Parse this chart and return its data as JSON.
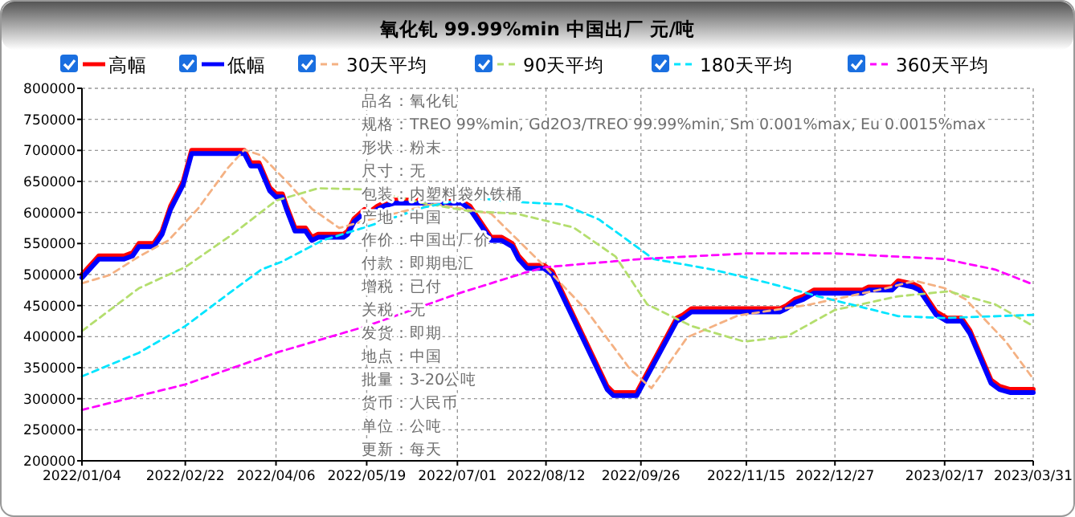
{
  "chart_data": {
    "type": "line",
    "title": "氧化钆 99.99%min 中国出厂 元/吨",
    "legend": "top",
    "grid": true,
    "marker": "none",
    "xlim": [
      "2022-01-04",
      "2023-03-31"
    ],
    "xticks": [
      {
        "value": "2022-01-04",
        "label": "2022/01/04"
      },
      {
        "value": "2022-02-22",
        "label": "2022/02/22"
      },
      {
        "value": "2022-04-06",
        "label": "2022/04/06"
      },
      {
        "value": "2022-05-19",
        "label": "2022/05/19"
      },
      {
        "value": "2022-07-01",
        "label": "2022/07/01"
      },
      {
        "value": "2022-08-12",
        "label": "2022/08/12"
      },
      {
        "value": "2022-09-26",
        "label": "2022/09/26"
      },
      {
        "value": "2022-11-15",
        "label": "2022/11/15"
      },
      {
        "value": "2022-12-27",
        "label": "2022/12/27"
      },
      {
        "value": "2023-02-17",
        "label": "2023/02/17"
      },
      {
        "value": "2023-03-31",
        "label": "2023/03/31"
      }
    ],
    "ylim": [
      200000,
      800000
    ],
    "yticks": [
      200000,
      250000,
      300000,
      350000,
      400000,
      450000,
      500000,
      550000,
      600000,
      650000,
      700000,
      750000,
      800000
    ],
    "annotations": [
      "品名：氧化钆",
      "规格：TREO 99%min, Gd2O3/TREO 99.99%min, Sm 0.001%max, Eu 0.0015%max",
      "形状：粉末",
      "尺寸：无",
      "包装：内塑料袋外铁桶",
      "产地：中国",
      "作价：中国出厂价",
      "付款：即期电汇",
      "增税：已付",
      "关税：无",
      "发货：即期",
      "地点：中国",
      "批量：3-20公吨",
      "货币：人民币",
      "单位：公吨",
      "更新：每天"
    ],
    "series": [
      {
        "name": "高幅",
        "color": "#ff0000",
        "line_style": "solid",
        "x": [
          "2022-01-04",
          "2022-01-12",
          "2022-01-24",
          "2022-01-28",
          "2022-01-31",
          "2022-02-07",
          "2022-02-11",
          "2022-02-15",
          "2022-02-21",
          "2022-02-25",
          "2022-03-22",
          "2022-03-25",
          "2022-03-29",
          "2022-04-03",
          "2022-04-06",
          "2022-04-09",
          "2022-04-11",
          "2022-04-15",
          "2022-04-20",
          "2022-04-23",
          "2022-04-26",
          "2022-05-08",
          "2022-05-10",
          "2022-05-13",
          "2022-05-18",
          "2022-05-20",
          "2022-05-24",
          "2022-05-27",
          "2022-06-01",
          "2022-07-03",
          "2022-07-05",
          "2022-07-07",
          "2022-07-13",
          "2022-07-17",
          "2022-07-22",
          "2022-07-27",
          "2022-07-30",
          "2022-08-03",
          "2022-08-11",
          "2022-08-15",
          "2022-09-10",
          "2022-09-13",
          "2022-09-24",
          "2022-10-13",
          "2022-10-16",
          "2022-10-20",
          "2022-12-01",
          "2022-12-04",
          "2022-12-08",
          "2022-12-12",
          "2022-12-17",
          "2023-01-09",
          "2023-01-12",
          "2023-01-23",
          "2023-01-26",
          "2023-02-02",
          "2023-02-05",
          "2023-02-13",
          "2023-02-18",
          "2023-02-25",
          "2023-03-01",
          "2023-03-11",
          "2023-03-15",
          "2023-03-20",
          "2023-03-31"
        ],
        "values": [
          500000,
          530000,
          530000,
          535000,
          550000,
          550000,
          570000,
          610000,
          650000,
          700000,
          700000,
          680000,
          680000,
          640000,
          630000,
          630000,
          610000,
          575000,
          575000,
          560000,
          565000,
          565000,
          570000,
          590000,
          605000,
          600000,
          610000,
          615000,
          620000,
          620000,
          615000,
          610000,
          580000,
          560000,
          560000,
          550000,
          530000,
          515000,
          515000,
          505000,
          320000,
          310000,
          310000,
          430000,
          435000,
          445000,
          445000,
          450000,
          460000,
          465000,
          475000,
          475000,
          480000,
          480000,
          490000,
          485000,
          480000,
          440000,
          430000,
          430000,
          410000,
          330000,
          320000,
          315000,
          315000
        ]
      },
      {
        "name": "低幅",
        "color": "#0000ff",
        "line_style": "solid",
        "x": [
          "2022-01-04",
          "2022-01-12",
          "2022-01-24",
          "2022-01-28",
          "2022-01-31",
          "2022-02-07",
          "2022-02-11",
          "2022-02-15",
          "2022-02-21",
          "2022-02-25",
          "2022-03-22",
          "2022-03-25",
          "2022-03-29",
          "2022-04-03",
          "2022-04-06",
          "2022-04-09",
          "2022-04-11",
          "2022-04-15",
          "2022-04-20",
          "2022-04-23",
          "2022-04-26",
          "2022-05-08",
          "2022-05-10",
          "2022-05-13",
          "2022-05-18",
          "2022-05-20",
          "2022-05-24",
          "2022-05-27",
          "2022-06-01",
          "2022-07-03",
          "2022-07-05",
          "2022-07-07",
          "2022-07-13",
          "2022-07-17",
          "2022-07-22",
          "2022-07-27",
          "2022-07-30",
          "2022-08-03",
          "2022-08-11",
          "2022-08-15",
          "2022-09-10",
          "2022-09-13",
          "2022-09-24",
          "2022-10-13",
          "2022-10-16",
          "2022-10-20",
          "2022-12-01",
          "2022-12-04",
          "2022-12-08",
          "2022-12-12",
          "2022-12-17",
          "2023-01-09",
          "2023-01-12",
          "2023-01-23",
          "2023-01-26",
          "2023-02-02",
          "2023-02-05",
          "2023-02-13",
          "2023-02-18",
          "2023-02-25",
          "2023-03-01",
          "2023-03-11",
          "2023-03-15",
          "2023-03-20",
          "2023-03-31"
        ],
        "values": [
          495000,
          525000,
          525000,
          530000,
          545000,
          545000,
          565000,
          605000,
          645000,
          695000,
          695000,
          675000,
          675000,
          635000,
          625000,
          625000,
          605000,
          570000,
          570000,
          555000,
          560000,
          560000,
          565000,
          585000,
          600000,
          595000,
          605000,
          610000,
          615000,
          615000,
          610000,
          605000,
          575000,
          555000,
          555000,
          545000,
          525000,
          510000,
          510000,
          500000,
          315000,
          305000,
          305000,
          425000,
          430000,
          440000,
          440000,
          445000,
          455000,
          460000,
          470000,
          470000,
          475000,
          475000,
          485000,
          480000,
          475000,
          435000,
          425000,
          425000,
          405000,
          325000,
          315000,
          310000,
          310000
        ]
      },
      {
        "name": "30天平均",
        "color": "#f4b183",
        "line_style": "dashed",
        "x": [
          "2022-01-04",
          "2022-01-17",
          "2022-01-31",
          "2022-02-14",
          "2022-02-28",
          "2022-03-14",
          "2022-03-22",
          "2022-03-30",
          "2022-04-11",
          "2022-04-23",
          "2022-05-06",
          "2022-05-21",
          "2022-06-20",
          "2022-07-17",
          "2022-08-12",
          "2022-08-31",
          "2022-09-21",
          "2022-10-01",
          "2022-10-18",
          "2022-11-11",
          "2022-12-14",
          "2023-01-19",
          "2023-02-03",
          "2023-02-17",
          "2023-02-27",
          "2023-03-18",
          "2023-03-31"
        ],
        "values": [
          486000,
          499000,
          529000,
          555000,
          606000,
          671000,
          701000,
          692000,
          650000,
          606000,
          575000,
          589000,
          614000,
          598000,
          511000,
          443000,
          347000,
          317000,
          399000,
          434000,
          451000,
          477000,
          490000,
          478000,
          460000,
          392000,
          332000
        ]
      },
      {
        "name": "90天平均",
        "color": "#b4de6e",
        "line_style": "dashed",
        "x": [
          "2022-01-04",
          "2022-01-31",
          "2022-02-22",
          "2022-03-16",
          "2022-04-06",
          "2022-04-26",
          "2022-05-19",
          "2022-06-15",
          "2022-07-07",
          "2022-07-29",
          "2022-08-25",
          "2022-09-14",
          "2022-09-29",
          "2022-10-20",
          "2022-11-14",
          "2022-12-04",
          "2022-12-27",
          "2023-01-26",
          "2023-02-19",
          "2023-03-13",
          "2023-03-31"
        ],
        "values": [
          409000,
          478000,
          512000,
          564000,
          619000,
          639000,
          637000,
          615000,
          602000,
          598000,
          576000,
          529000,
          452000,
          417000,
          392000,
          400000,
          443000,
          465000,
          473000,
          452000,
          417000
        ]
      },
      {
        "name": "180天平均",
        "color": "#00e5ff",
        "line_style": "dashed",
        "x": [
          "2022-01-04",
          "2022-01-31",
          "2022-02-22",
          "2022-03-16",
          "2022-03-30",
          "2022-04-09",
          "2022-04-28",
          "2022-05-19",
          "2022-06-15",
          "2022-07-07",
          "2022-07-29",
          "2022-08-20",
          "2022-09-06",
          "2022-10-02",
          "2022-10-30",
          "2022-11-26",
          "2022-12-19",
          "2023-01-26",
          "2023-02-17",
          "2023-03-31"
        ],
        "values": [
          336000,
          374000,
          417000,
          473000,
          508000,
          521000,
          555000,
          577000,
          608000,
          624000,
          617000,
          613000,
          589000,
          525000,
          508000,
          486000,
          465000,
          433000,
          430000,
          435000
        ]
      },
      {
        "name": "360天平均",
        "color": "#ff00ff",
        "line_style": "dashed",
        "x": [
          "2022-01-04",
          "2022-02-22",
          "2022-04-06",
          "2022-05-19",
          "2022-07-01",
          "2022-08-02",
          "2022-08-12",
          "2022-09-26",
          "2022-11-15",
          "2022-12-27",
          "2023-02-17",
          "2023-03-13",
          "2023-03-31"
        ],
        "values": [
          282000,
          323000,
          374000,
          417000,
          469000,
          503000,
          512000,
          525000,
          534000,
          534000,
          525000,
          508000,
          484000
        ]
      }
    ]
  }
}
